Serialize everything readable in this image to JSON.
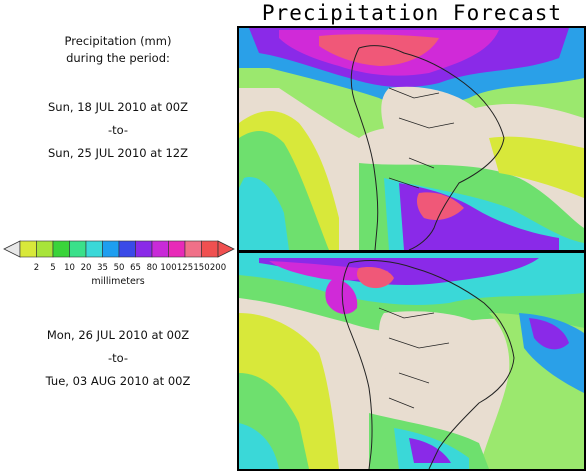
{
  "title": "Precipitation Forecast",
  "header": {
    "line1": "Precipitation (mm)",
    "line2": "during the period:"
  },
  "period1": {
    "start": "Sun, 18 JUL 2010 at 00Z",
    "sep": "-to-",
    "end": "Sun, 25 JUL 2010 at 12Z"
  },
  "period2": {
    "start": "Mon, 26 JUL 2010 at 00Z",
    "sep": "-to-",
    "end": "Tue, 03 AUG 2010 at 00Z"
  },
  "legend": {
    "unit": "millimeters",
    "thresholds": [
      "2",
      "5",
      "10",
      "20",
      "35",
      "50",
      "65",
      "80",
      "100",
      "125",
      "150",
      "200"
    ],
    "colors": [
      "#d8e83a",
      "#a8e43a",
      "#3ad43a",
      "#3ae08a",
      "#3ad8d8",
      "#1e9ef0",
      "#3a4ae8",
      "#8a2ae8",
      "#c82ad8",
      "#e82ab8",
      "#f07088",
      "#f05050"
    ],
    "end_color": "#e8e8e8"
  },
  "map_colors": {
    "land": "#e8ddd0",
    "ocean_green": "#6ee06e",
    "light_green": "#9be86e",
    "yellow": "#d8e83a",
    "cyan": "#3ad8d8",
    "blue": "#2aa0e8",
    "purple": "#8a2ae8",
    "magenta": "#d02ad8",
    "red": "#f05878"
  }
}
